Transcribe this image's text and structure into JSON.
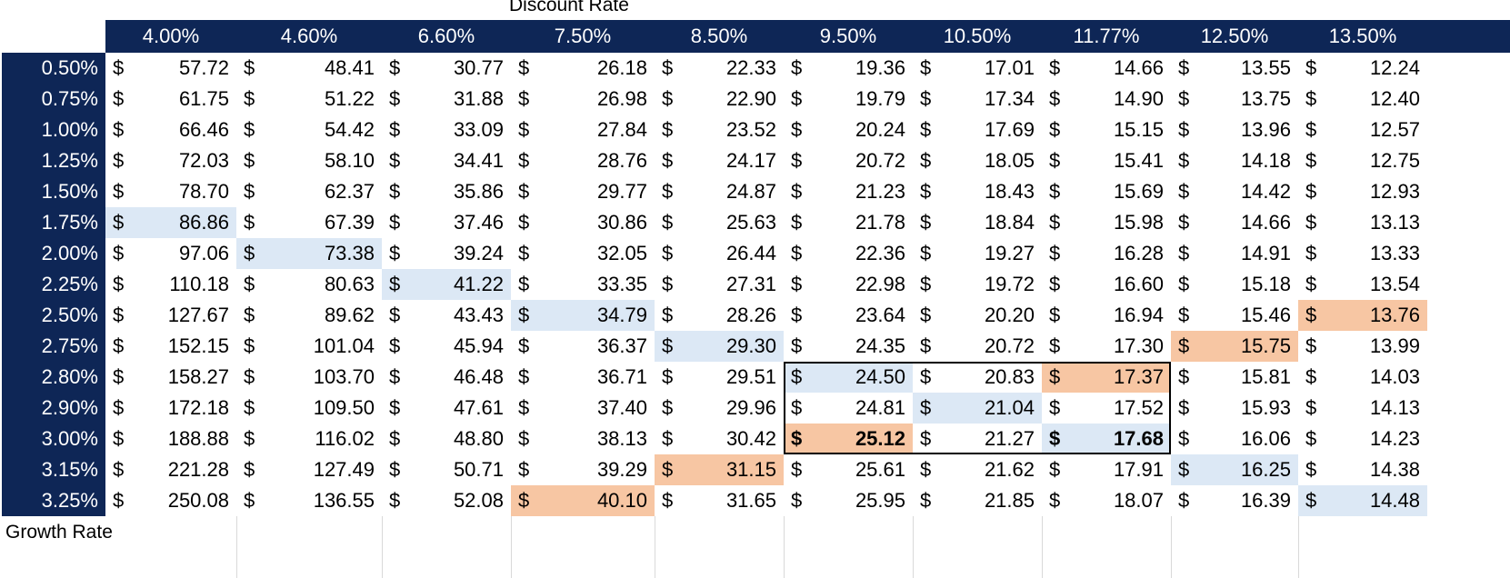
{
  "titles": {
    "top": "Discount Rate",
    "bottom": "Growth Rate"
  },
  "currency_symbol": "$",
  "colors": {
    "header_bg": "#0e2656",
    "highlight_blue": "#dce8f5",
    "highlight_orange": "#f7c6a3"
  },
  "discount_rates": [
    "4.00%",
    "4.60%",
    "6.60%",
    "7.50%",
    "8.50%",
    "9.50%",
    "10.50%",
    "11.77%",
    "12.50%",
    "13.50%"
  ],
  "growth_rates": [
    "0.50%",
    "0.75%",
    "1.00%",
    "1.25%",
    "1.50%",
    "1.75%",
    "2.00%",
    "2.25%",
    "2.50%",
    "2.75%",
    "2.80%",
    "2.90%",
    "3.00%",
    "3.15%",
    "3.25%"
  ],
  "values": [
    [
      "57.72",
      "48.41",
      "30.77",
      "26.18",
      "22.33",
      "19.36",
      "17.01",
      "14.66",
      "13.55",
      "12.24"
    ],
    [
      "61.75",
      "51.22",
      "31.88",
      "26.98",
      "22.90",
      "19.79",
      "17.34",
      "14.90",
      "13.75",
      "12.40"
    ],
    [
      "66.46",
      "54.42",
      "33.09",
      "27.84",
      "23.52",
      "20.24",
      "17.69",
      "15.15",
      "13.96",
      "12.57"
    ],
    [
      "72.03",
      "58.10",
      "34.41",
      "28.76",
      "24.17",
      "20.72",
      "18.05",
      "15.41",
      "14.18",
      "12.75"
    ],
    [
      "78.70",
      "62.37",
      "35.86",
      "29.77",
      "24.87",
      "21.23",
      "18.43",
      "15.69",
      "14.42",
      "12.93"
    ],
    [
      "86.86",
      "67.39",
      "37.46",
      "30.86",
      "25.63",
      "21.78",
      "18.84",
      "15.98",
      "14.66",
      "13.13"
    ],
    [
      "97.06",
      "73.38",
      "39.24",
      "32.05",
      "26.44",
      "22.36",
      "19.27",
      "16.28",
      "14.91",
      "13.33"
    ],
    [
      "110.18",
      "80.63",
      "41.22",
      "33.35",
      "27.31",
      "22.98",
      "19.72",
      "16.60",
      "15.18",
      "13.54"
    ],
    [
      "127.67",
      "89.62",
      "43.43",
      "34.79",
      "28.26",
      "23.64",
      "20.20",
      "16.94",
      "15.46",
      "13.76"
    ],
    [
      "152.15",
      "101.04",
      "45.94",
      "36.37",
      "29.30",
      "24.35",
      "20.72",
      "17.30",
      "15.75",
      "13.99"
    ],
    [
      "158.27",
      "103.70",
      "46.48",
      "36.71",
      "29.51",
      "24.50",
      "20.83",
      "17.37",
      "15.81",
      "14.03"
    ],
    [
      "172.18",
      "109.50",
      "47.61",
      "37.40",
      "29.96",
      "24.81",
      "21.04",
      "17.52",
      "15.93",
      "14.13"
    ],
    [
      "188.88",
      "116.02",
      "48.80",
      "38.13",
      "30.42",
      "25.12",
      "21.27",
      "17.68",
      "16.06",
      "14.23"
    ],
    [
      "221.28",
      "127.49",
      "50.71",
      "39.29",
      "31.15",
      "25.61",
      "21.62",
      "17.91",
      "16.25",
      "14.38"
    ],
    [
      "250.08",
      "136.55",
      "52.08",
      "40.10",
      "31.65",
      "25.95",
      "21.85",
      "18.07",
      "16.39",
      "14.48"
    ]
  ],
  "highlights": {
    "blue": [
      [
        5,
        0
      ],
      [
        6,
        1
      ],
      [
        7,
        2
      ],
      [
        8,
        3
      ],
      [
        9,
        4
      ],
      [
        10,
        5
      ],
      [
        11,
        6
      ],
      [
        12,
        7
      ],
      [
        13,
        8
      ],
      [
        14,
        9
      ]
    ],
    "orange": [
      [
        8,
        9
      ],
      [
        9,
        8
      ],
      [
        10,
        7
      ],
      [
        12,
        5
      ],
      [
        13,
        4
      ],
      [
        14,
        3
      ]
    ],
    "bold": [
      [
        12,
        5
      ],
      [
        12,
        7
      ]
    ]
  }
}
